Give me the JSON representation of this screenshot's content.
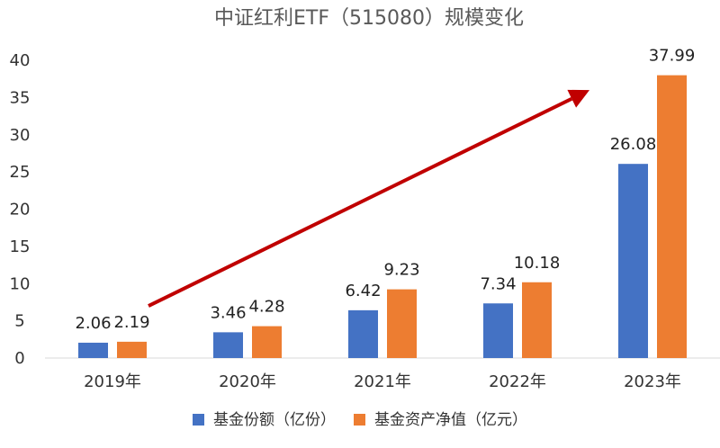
{
  "chart_data": {
    "type": "bar",
    "title": "中证红利ETF（515080）规模变化",
    "categories": [
      "2019年",
      "2020年",
      "2021年",
      "2022年",
      "2023年"
    ],
    "series": [
      {
        "name": "基金份额（亿份）",
        "values": [
          2.06,
          3.46,
          6.42,
          7.34,
          26.08
        ],
        "color": "#4472C4"
      },
      {
        "name": "基金资产净值（亿元）",
        "values": [
          2.19,
          4.28,
          9.23,
          10.18,
          37.99
        ],
        "color": "#ED7D31"
      }
    ],
    "value_labels": [
      [
        "2.06",
        "3.46",
        "6.42",
        "7.34",
        "26.08"
      ],
      [
        "2.19",
        "4.28",
        "9.23",
        "10.18",
        "37.99"
      ]
    ],
    "yticks": [
      "0",
      "5",
      "10",
      "15",
      "20",
      "25",
      "30",
      "35",
      "40"
    ],
    "ylim": [
      0,
      40
    ],
    "grid": false,
    "legend": "bottom",
    "trend_arrow": {
      "from": {
        "category": "2019年",
        "value": 7
      },
      "to": {
        "category": "2023年",
        "value": 36
      },
      "color": "#C00000"
    }
  }
}
